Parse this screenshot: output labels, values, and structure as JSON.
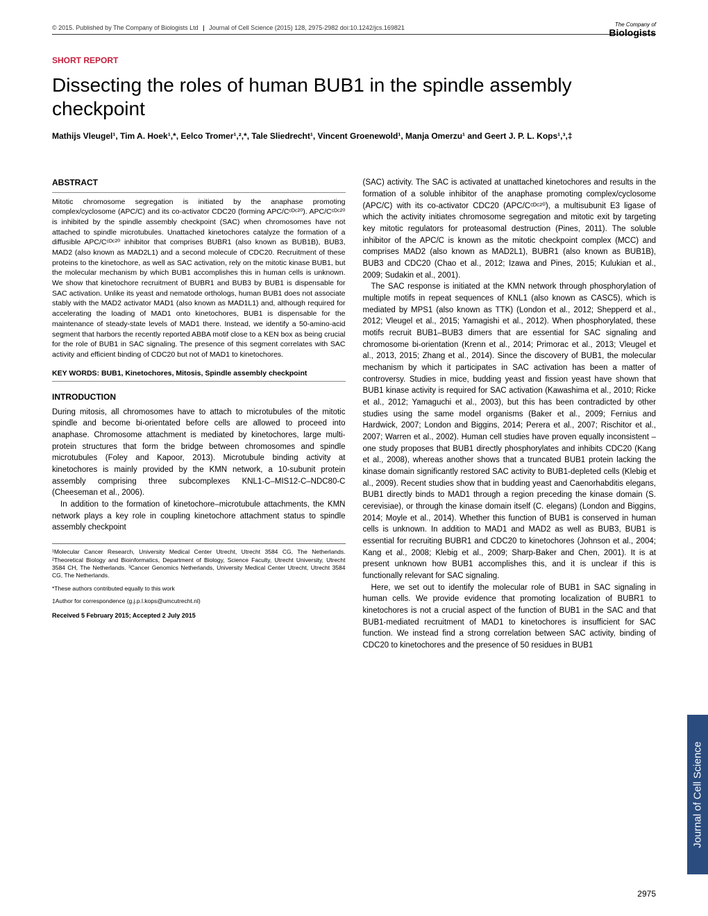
{
  "header": {
    "copyright": "© 2015. Published by The Company of Biologists Ltd",
    "journal": "Journal of Cell Science (2015) 128, 2975-2982 doi:10.1242/jcs.169821"
  },
  "logo": {
    "top": "The Company of",
    "bottom": "Biologists"
  },
  "section_label": "SHORT REPORT",
  "title": "Dissecting the roles of human BUB1 in the spindle assembly checkpoint",
  "authors": "Mathijs Vleugel¹, Tim A. Hoek¹,*, Eelco Tromer¹,²,*, Tale Sliedrecht¹, Vincent Groenewold¹, Manja Omerzu¹ and Geert J. P. L. Kops¹,³,‡",
  "abstract_heading": "ABSTRACT",
  "abstract": "Mitotic chromosome segregation is initiated by the anaphase promoting complex/cyclosome (APC/C) and its co-activator CDC20 (forming APC/Cᶜᴰᶜ²⁰). APC/Cᶜᴰᶜ²⁰ is inhibited by the spindle assembly checkpoint (SAC) when chromosomes have not attached to spindle microtubules. Unattached kinetochores catalyze the formation of a diffusible APC/Cᶜᴰᶜ²⁰ inhibitor that comprises BUBR1 (also known as BUB1B), BUB3, MAD2 (also known as MAD2L1) and a second molecule of CDC20. Recruitment of these proteins to the kinetochore, as well as SAC activation, rely on the mitotic kinase BUB1, but the molecular mechanism by which BUB1 accomplishes this in human cells is unknown. We show that kinetochore recruitment of BUBR1 and BUB3 by BUB1 is dispensable for SAC activation. Unlike its yeast and nematode orthologs, human BUB1 does not associate stably with the MAD2 activator MAD1 (also known as MAD1L1) and, although required for accelerating the loading of MAD1 onto kinetochores, BUB1 is dispensable for the maintenance of steady-state levels of MAD1 there. Instead, we identify a 50-amino-acid segment that harbors the recently reported ABBA motif close to a KEN box as being crucial for the role of BUB1 in SAC signaling. The presence of this segment correlates with SAC activity and efficient binding of CDC20 but not of MAD1 to kinetochores.",
  "keywords": "KEY WORDS: BUB1, Kinetochores, Mitosis, Spindle assembly checkpoint",
  "intro_heading": "INTRODUCTION",
  "intro_p1": "During mitosis, all chromosomes have to attach to microtubules of the mitotic spindle and become bi-orientated before cells are allowed to proceed into anaphase. Chromosome attachment is mediated by kinetochores, large multi-protein structures that form the bridge between chromosomes and spindle microtubules (Foley and Kapoor, 2013). Microtubule binding activity at kinetochores is mainly provided by the KMN network, a 10-subunit protein assembly comprising three subcomplexes KNL1-C–MIS12-C–NDC80-C (Cheeseman et al., 2006).",
  "intro_p2": "In addition to the formation of kinetochore–microtubule attachments, the KMN network plays a key role in coupling kinetochore attachment status to spindle assembly checkpoint",
  "affiliations": "¹Molecular Cancer Research, University Medical Center Utrecht, Utrecht 3584 CG, The Netherlands. ²Theoretical Biology and Bioinformatics, Department of Biology, Science Faculty, Utrecht University, Utrecht 3584 CH, The Netherlands. ³Cancer Genomics Netherlands, University Medical Center Utrecht, Utrecht 3584 CG, The Netherlands.",
  "equal_contrib": "*These authors contributed equally to this work",
  "correspondence": "‡Author for correspondence (g.j.p.l.kops@umcutrecht.nl)",
  "received": "Received 5 February 2015; Accepted 2 July 2015",
  "col2_p1": "(SAC) activity. The SAC is activated at unattached kinetochores and results in the formation of a soluble inhibitor of the anaphase promoting complex/cyclosome (APC/C) with its co-activator CDC20 (APC/Cᶜᴰᶜ²⁰), a multisubunit E3 ligase of which the activity initiates chromosome segregation and mitotic exit by targeting key mitotic regulators for proteasomal destruction (Pines, 2011). The soluble inhibitor of the APC/C is known as the mitotic checkpoint complex (MCC) and comprises MAD2 (also known as MAD2L1), BUBR1 (also known as BUB1B), BUB3 and CDC20 (Chao et al., 2012; Izawa and Pines, 2015; Kulukian et al., 2009; Sudakin et al., 2001).",
  "col2_p2": "The SAC response is initiated at the KMN network through phosphorylation of multiple motifs in repeat sequences of KNL1 (also known as CASC5), which is mediated by MPS1 (also known as TTK) (London et al., 2012; Shepperd et al., 2012; Vleugel et al., 2015; Yamagishi et al., 2012). When phosphorylated, these motifs recruit BUB1–BUB3 dimers that are essential for SAC signaling and chromosome bi-orientation (Krenn et al., 2014; Primorac et al., 2013; Vleugel et al., 2013, 2015; Zhang et al., 2014). Since the discovery of BUB1, the molecular mechanism by which it participates in SAC activation has been a matter of controversy. Studies in mice, budding yeast and fission yeast have shown that BUB1 kinase activity is required for SAC activation (Kawashima et al., 2010; Ricke et al., 2012; Yamaguchi et al., 2003), but this has been contradicted by other studies using the same model organisms (Baker et al., 2009; Fernius and Hardwick, 2007; London and Biggins, 2014; Perera et al., 2007; Rischitor et al., 2007; Warren et al., 2002). Human cell studies have proven equally inconsistent – one study proposes that BUB1 directly phosphorylates and inhibits CDC20 (Kang et al., 2008), whereas another shows that a truncated BUB1 protein lacking the kinase domain significantly restored SAC activity to BUB1-depleted cells (Klebig et al., 2009). Recent studies show that in budding yeast and Caenorhabditis elegans, BUB1 directly binds to MAD1 through a region preceding the kinase domain (S. cerevisiae), or through the kinase domain itself (C. elegans) (London and Biggins, 2014; Moyle et al., 2014). Whether this function of BUB1 is conserved in human cells is unknown. In addition to MAD1 and MAD2 as well as BUB3, BUB1 is essential for recruiting BUBR1 and CDC20 to kinetochores (Johnson et al., 2004; Kang et al., 2008; Klebig et al., 2009; Sharp-Baker and Chen, 2001). It is at present unknown how BUB1 accomplishes this, and it is unclear if this is functionally relevant for SAC signaling.",
  "col2_p3": "Here, we set out to identify the molecular role of BUB1 in SAC signaling in human cells. We provide evidence that promoting localization of BUBR1 to kinetochores is not a crucial aspect of the function of BUB1 in the SAC and that BUB1-mediated recruitment of MAD1 to kinetochores is insufficient for SAC function. We instead find a strong correlation between SAC activity, binding of CDC20 to kinetochores and the presence of 50 residues in BUB1",
  "side_tab": "Journal of Cell Science",
  "page_num": "2975"
}
